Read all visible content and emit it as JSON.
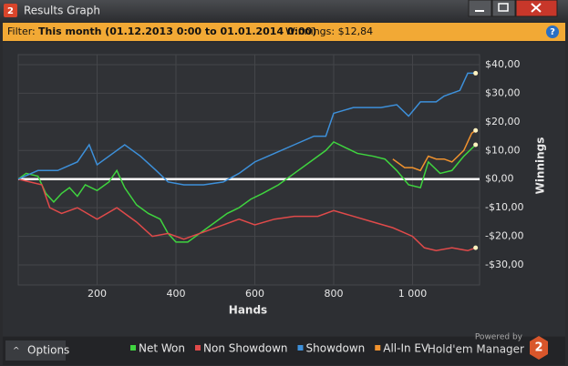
{
  "window": {
    "title": "Results Graph",
    "icon": "2"
  },
  "filter": {
    "label": "Filter:",
    "period": "This month (01.12.2013 0:00 to 01.01.2014 0:00)",
    "winnings": "Winnings: $12,84"
  },
  "footer": {
    "options": "Options",
    "powered_by": "Powered by",
    "brand": "Hold'em Manager",
    "logo": "2"
  },
  "chart_data": {
    "type": "line",
    "xlabel": "Hands",
    "ylabel": "Winnings",
    "xlim": [
      0,
      1170
    ],
    "xticks": [
      200,
      400,
      600,
      800,
      {
        "value": 1000,
        "label": "1 000"
      }
    ],
    "ylim": [
      -37,
      43.5
    ],
    "yticks": [
      {
        "value": 40,
        "label": "$40,00"
      },
      {
        "value": 30,
        "label": "$30,00"
      },
      {
        "value": 20,
        "label": "$20,00"
      },
      {
        "value": 10,
        "label": "$10,00"
      },
      {
        "value": 0,
        "label": "$0,00"
      },
      {
        "value": -10,
        "label": "-$10,00"
      },
      {
        "value": -20,
        "label": "-$20,00"
      },
      {
        "value": -30,
        "label": "-$30,00"
      }
    ],
    "grid": true,
    "series": [
      {
        "name": "Net Won",
        "color": "#3fd43f",
        "x": [
          0,
          20,
          50,
          70,
          90,
          110,
          130,
          150,
          170,
          200,
          230,
          250,
          270,
          300,
          330,
          360,
          380,
          400,
          430,
          460,
          500,
          530,
          560,
          590,
          620,
          660,
          700,
          740,
          780,
          800,
          830,
          860,
          900,
          930,
          960,
          990,
          1020,
          1040,
          1070,
          1100,
          1130,
          1160
        ],
        "values": [
          0,
          2,
          1,
          -5,
          -8,
          -5,
          -3,
          -6,
          -2,
          -4,
          -1,
          3,
          -3,
          -9,
          -12,
          -14,
          -19,
          -22,
          -22,
          -19,
          -15,
          -12,
          -10,
          -7,
          -5,
          -2,
          2,
          6,
          10,
          13,
          11,
          9,
          8,
          7,
          3,
          -2,
          -3,
          6,
          2,
          3,
          8,
          12
        ]
      },
      {
        "name": "Non Showdown",
        "color": "#e04a4a",
        "x": [
          0,
          60,
          80,
          110,
          150,
          200,
          250,
          300,
          340,
          380,
          420,
          460,
          500,
          560,
          600,
          650,
          700,
          760,
          800,
          850,
          900,
          950,
          1000,
          1030,
          1060,
          1100,
          1140,
          1160
        ],
        "values": [
          0,
          -2,
          -10,
          -12,
          -10,
          -14,
          -10,
          -15,
          -20,
          -19,
          -21,
          -19,
          -17,
          -14,
          -16,
          -14,
          -13,
          -13,
          -11,
          -13,
          -15,
          -17,
          -20,
          -24,
          -25,
          -24,
          -25,
          -24
        ]
      },
      {
        "name": "Showdown",
        "color": "#3d90da",
        "x": [
          0,
          50,
          100,
          150,
          180,
          200,
          230,
          270,
          310,
          350,
          380,
          420,
          470,
          520,
          560,
          600,
          650,
          700,
          750,
          780,
          800,
          850,
          920,
          960,
          990,
          1020,
          1060,
          1080,
          1120,
          1140,
          1160
        ],
        "values": [
          0,
          3,
          3,
          6,
          12,
          5,
          8,
          12,
          8,
          3,
          -1,
          -2,
          -2,
          -1,
          2,
          6,
          9,
          12,
          15,
          15,
          23,
          25,
          25,
          26,
          22,
          27,
          27,
          29,
          31,
          37,
          37
        ]
      },
      {
        "name": "All-In EV",
        "color": "#f0922e",
        "x": [
          950,
          980,
          1000,
          1020,
          1040,
          1060,
          1080,
          1100,
          1130,
          1150,
          1160
        ],
        "values": [
          7,
          4,
          4,
          3,
          8,
          7,
          7,
          6,
          10,
          16,
          17
        ]
      }
    ]
  }
}
